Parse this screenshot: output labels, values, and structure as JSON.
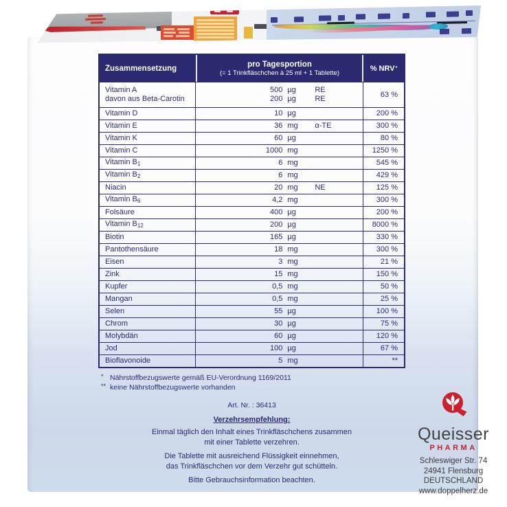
{
  "package": {
    "table": {
      "header": {
        "col1": "Zusammensetzung",
        "col2_line1": "pro Tagesportion",
        "col2_line2": "(= 1 Trinkfläschchen à 25 ml + 1 Tablette)",
        "col3": "% NRV",
        "col3_sup": "*"
      },
      "rows": [
        {
          "label": "Vitamin A",
          "label2": "davon aus Beta-Carotin",
          "values": [
            {
              "amount": "500",
              "unit": "µg",
              "suffix": "RE"
            },
            {
              "amount": "200",
              "unit": "µg",
              "suffix": "RE"
            }
          ],
          "nrv": "63 %"
        },
        {
          "label": "Vitamin D",
          "values": [
            {
              "amount": "10",
              "unit": "µg",
              "suffix": ""
            }
          ],
          "nrv": "200 %"
        },
        {
          "label": "Vitamin E",
          "values": [
            {
              "amount": "36",
              "unit": "mg",
              "suffix": "α-TE"
            }
          ],
          "nrv": "300 %"
        },
        {
          "label": "Vitamin K",
          "values": [
            {
              "amount": "60",
              "unit": "µg",
              "suffix": ""
            }
          ],
          "nrv": "80 %"
        },
        {
          "label": "Vitamin C",
          "values": [
            {
              "amount": "1000",
              "unit": "mg",
              "suffix": ""
            }
          ],
          "nrv": "1250 %"
        },
        {
          "label": "Vitamin B",
          "sub": "1",
          "values": [
            {
              "amount": "6",
              "unit": "mg",
              "suffix": ""
            }
          ],
          "nrv": "545 %"
        },
        {
          "label": "Vitamin B",
          "sub": "2",
          "values": [
            {
              "amount": "6",
              "unit": "mg",
              "suffix": ""
            }
          ],
          "nrv": "429 %"
        },
        {
          "label": "Niacin",
          "values": [
            {
              "amount": "20",
              "unit": "mg",
              "suffix": "NE"
            }
          ],
          "nrv": "125 %"
        },
        {
          "label": "Vitamin B",
          "sub": "6",
          "values": [
            {
              "amount": "4,2",
              "unit": "mg",
              "suffix": ""
            }
          ],
          "nrv": "300 %"
        },
        {
          "label": "Folsäure",
          "values": [
            {
              "amount": "400",
              "unit": "µg",
              "suffix": ""
            }
          ],
          "nrv": "200 %"
        },
        {
          "label": "Vitamin B",
          "sub": "12",
          "values": [
            {
              "amount": "200",
              "unit": "µg",
              "suffix": ""
            }
          ],
          "nrv": "8000 %"
        },
        {
          "label": "Biotin",
          "values": [
            {
              "amount": "165",
              "unit": "µg",
              "suffix": ""
            }
          ],
          "nrv": "330 %"
        },
        {
          "label": "Pantothensäure",
          "values": [
            {
              "amount": "18",
              "unit": "mg",
              "suffix": ""
            }
          ],
          "nrv": "300 %"
        },
        {
          "label": "Eisen",
          "values": [
            {
              "amount": "3",
              "unit": "mg",
              "suffix": ""
            }
          ],
          "nrv": "21 %"
        },
        {
          "label": "Zink",
          "values": [
            {
              "amount": "15",
              "unit": "mg",
              "suffix": ""
            }
          ],
          "nrv": "150 %"
        },
        {
          "label": "Kupfer",
          "values": [
            {
              "amount": "0,5",
              "unit": "mg",
              "suffix": ""
            }
          ],
          "nrv": "50 %"
        },
        {
          "label": "Mangan",
          "values": [
            {
              "amount": "0,5",
              "unit": "mg",
              "suffix": ""
            }
          ],
          "nrv": "25 %"
        },
        {
          "label": "Selen",
          "values": [
            {
              "amount": "55",
              "unit": "µg",
              "suffix": ""
            }
          ],
          "nrv": "100 %"
        },
        {
          "label": "Chrom",
          "values": [
            {
              "amount": "30",
              "unit": "µg",
              "suffix": ""
            }
          ],
          "nrv": "75 %"
        },
        {
          "label": "Molybdän",
          "values": [
            {
              "amount": "60",
              "unit": "µg",
              "suffix": ""
            }
          ],
          "nrv": "120 %"
        },
        {
          "label": "Jod",
          "values": [
            {
              "amount": "100",
              "unit": "µg",
              "suffix": ""
            }
          ],
          "nrv": "67 %"
        },
        {
          "label": "Bioflavonoide",
          "values": [
            {
              "amount": "5",
              "unit": "mg",
              "suffix": ""
            }
          ],
          "nrv": "**"
        }
      ]
    },
    "footnotes": [
      {
        "marker": "*",
        "text": "Nährstoffbezugswerte gemäß EU-Verordnung 1169/2011"
      },
      {
        "marker": "**",
        "text": "keine Nährstoffbezugswerte vorhanden"
      }
    ],
    "art_no": "Art. Nr. : 36413",
    "dosage": {
      "heading": "Verzehrsempfehlung:",
      "paragraphs": [
        [
          "Einmal täglich den Inhalt eines Trinkfläschchens zusammen",
          "mit einer Tablette verzehren."
        ],
        [
          "Die Tablette mit ausreichend Flüssigkeit einnehmen,",
          "das Trinkfläschchen vor dem Verzehr gut schütteln."
        ],
        [
          "Bitte Gebrauchsinformation beachten."
        ]
      ]
    },
    "brand": {
      "name": "Queisser",
      "subtitle": "PHARMA",
      "address": [
        "Schleswiger Str. 74",
        "24941 Flensburg",
        "DEUTSCHLAND",
        "www.doppelherz.de"
      ]
    },
    "colors": {
      "table_navy": "#2b2970",
      "brand_red": "#c22033",
      "panel_blue": "#cfdcec"
    }
  }
}
